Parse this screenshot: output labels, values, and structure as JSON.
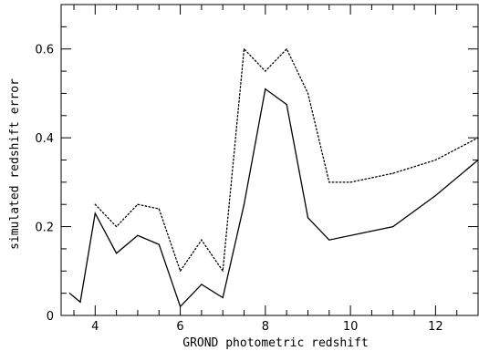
{
  "chart_data": {
    "type": "line",
    "xlabel": "GROND photometric redshift",
    "ylabel": "simulated redshift error",
    "xlim": [
      3.2,
      13
    ],
    "ylim": [
      0,
      0.7
    ],
    "x_major_ticks": [
      4,
      6,
      8,
      10,
      12
    ],
    "y_major_ticks": [
      0,
      0.2,
      0.4,
      0.6
    ],
    "x_tick_labels": [
      "4",
      "6",
      "8",
      "10",
      "12"
    ],
    "y_tick_labels": [
      "0",
      "0.2",
      "0.4",
      "0.6"
    ],
    "grid": false,
    "legend": "none",
    "series": [
      {
        "style": "solid",
        "points": [
          {
            "x": 3.4,
            "y": 0.05
          },
          {
            "x": 3.65,
            "y": 0.03
          },
          {
            "x": 4.0,
            "y": 0.23
          },
          {
            "x": 4.5,
            "y": 0.14
          },
          {
            "x": 5.0,
            "y": 0.18
          },
          {
            "x": 5.5,
            "y": 0.16
          },
          {
            "x": 6.0,
            "y": 0.02
          },
          {
            "x": 6.5,
            "y": 0.07
          },
          {
            "x": 7.0,
            "y": 0.04
          },
          {
            "x": 7.5,
            "y": 0.25
          },
          {
            "x": 8.0,
            "y": 0.51
          },
          {
            "x": 8.5,
            "y": 0.475
          },
          {
            "x": 9.0,
            "y": 0.22
          },
          {
            "x": 9.5,
            "y": 0.17
          },
          {
            "x": 11.0,
            "y": 0.2
          },
          {
            "x": 12.0,
            "y": 0.27
          },
          {
            "x": 13.0,
            "y": 0.35
          }
        ]
      },
      {
        "style": "dotted",
        "points": [
          {
            "x": 4.0,
            "y": 0.25
          },
          {
            "x": 4.5,
            "y": 0.2
          },
          {
            "x": 5.0,
            "y": 0.25
          },
          {
            "x": 5.5,
            "y": 0.24
          },
          {
            "x": 6.0,
            "y": 0.1
          },
          {
            "x": 6.5,
            "y": 0.17
          },
          {
            "x": 7.0,
            "y": 0.1
          },
          {
            "x": 7.5,
            "y": 0.6
          },
          {
            "x": 8.0,
            "y": 0.55
          },
          {
            "x": 8.5,
            "y": 0.6
          },
          {
            "x": 9.0,
            "y": 0.5
          },
          {
            "x": 9.5,
            "y": 0.3
          },
          {
            "x": 10.0,
            "y": 0.3
          },
          {
            "x": 11.0,
            "y": 0.32
          },
          {
            "x": 12.0,
            "y": 0.35
          },
          {
            "x": 13.0,
            "y": 0.4
          }
        ]
      }
    ]
  }
}
